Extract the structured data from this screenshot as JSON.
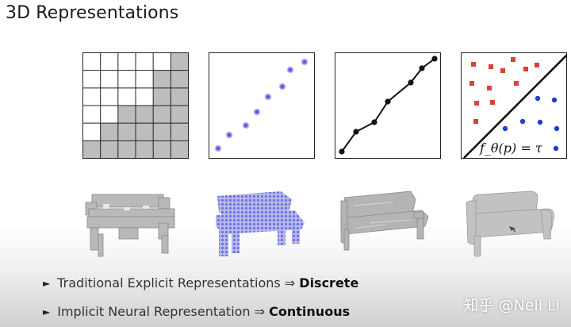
{
  "slide": {
    "title": "3D Representations"
  },
  "panels": {
    "voxel": {
      "icon": "voxel-grid-icon",
      "filled_cells": [
        [
          0,
          5
        ],
        [
          1,
          4
        ],
        [
          1,
          5
        ],
        [
          2,
          4
        ],
        [
          2,
          5
        ],
        [
          3,
          2
        ],
        [
          3,
          3
        ],
        [
          3,
          4
        ],
        [
          3,
          5
        ],
        [
          4,
          1
        ],
        [
          4,
          2
        ],
        [
          4,
          3
        ],
        [
          4,
          4
        ],
        [
          4,
          5
        ],
        [
          5,
          0
        ],
        [
          5,
          1
        ],
        [
          5,
          2
        ],
        [
          5,
          3
        ],
        [
          5,
          4
        ],
        [
          5,
          5
        ]
      ]
    },
    "point_cloud": {
      "icon": "point-cloud-icon",
      "point_color": "#4a4ae0"
    },
    "mesh": {
      "icon": "mesh-polyline-icon"
    },
    "implicit": {
      "icon": "implicit-boundary-icon",
      "formula": "f_θ(p) = τ",
      "red": "#d9432f",
      "blue": "#1f3fd1"
    }
  },
  "benches": {
    "voxel": "voxel-bench-icon",
    "point_cloud": "point-cloud-bench-icon",
    "mesh": "mesh-bench-icon",
    "implicit": "implicit-bench-icon"
  },
  "bullets": [
    {
      "marker": "►",
      "text": "Traditional Explicit Representations ⇒ ",
      "emphasis": "Discrete"
    },
    {
      "marker": "►",
      "text": "Implicit Neural Representation ⇒ ",
      "emphasis": "Continuous"
    }
  ],
  "watermark": "知乎 @Neil Li"
}
